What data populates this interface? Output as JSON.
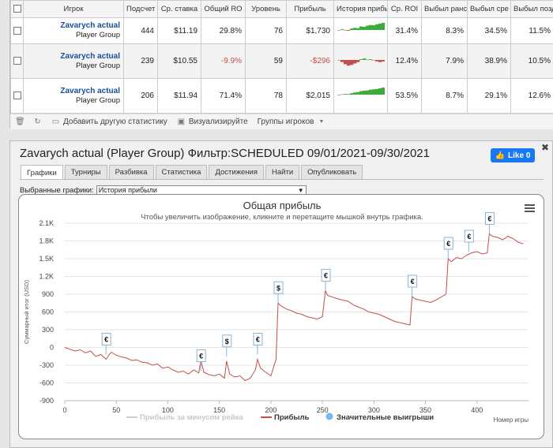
{
  "table": {
    "headers": [
      "Игрок",
      "Подсчет",
      "Ср. ставка",
      "Общий RO",
      "Уровень",
      "Прибыль",
      "История прибы",
      "Ср. ROI",
      "Выбыл ранс",
      "Выбыл сре",
      "Выбыл позд"
    ],
    "rows": [
      {
        "name": "Zavarych actual",
        "group": "Player Group",
        "count": "444",
        "avg_bet": "$11.19",
        "total_roi": "29.8%",
        "level": "76",
        "profit": "$1,730",
        "avg_roi": "31.4%",
        "early": "8.3%",
        "mid": "34.5%",
        "late": "11.5%",
        "negative": false
      },
      {
        "name": "Zavarych actual",
        "group": "Player Group",
        "count": "239",
        "avg_bet": "$10.55",
        "total_roi": "-9.9%",
        "level": "59",
        "profit": "-$296",
        "avg_roi": "12.4%",
        "early": "7.9%",
        "mid": "38.9%",
        "late": "10.5%",
        "negative": true
      },
      {
        "name": "Zavarych actual",
        "group": "Player Group",
        "count": "206",
        "avg_bet": "$11.94",
        "total_roi": "71.4%",
        "level": "78",
        "profit": "$2,015",
        "avg_roi": "53.5%",
        "early": "8.7%",
        "mid": "29.1%",
        "late": "12.6%",
        "negative": false
      }
    ]
  },
  "toolbar": {
    "add_stat": "Добавить другую статистику",
    "visualize": "Визуализируйте",
    "groups": "Группы игроков"
  },
  "panel": {
    "title": "Zavarych actual (Player Group) Фильтр:SCHEDULED 09/01/2021-09/30/2021",
    "like_label": "Like 0",
    "tabs": [
      "Графики",
      "Турниры",
      "Разбивка",
      "Статистика",
      "Достижения",
      "Найти",
      "Опубликовать"
    ],
    "select_label": "Выбранные графики:",
    "select_value": "История прибыли"
  },
  "chart_data": {
    "type": "line",
    "title": "Общая прибыль",
    "subtitle": "Чтобы увеличить изображение, кликните и перетащите мышкой внутрь графика.",
    "ylabel": "Суммарный итог (USD)",
    "xlabel": "Номер игры",
    "ylim": [
      -900,
      2100
    ],
    "xlim": [
      0,
      450
    ],
    "yticks": [
      "2.1K",
      "1.8K",
      "1.5K",
      "1.2K",
      "900",
      "600",
      "300",
      "0",
      "-300",
      "-600",
      "-900"
    ],
    "xticks": [
      "0",
      "50",
      "100",
      "150",
      "200",
      "250",
      "300",
      "350",
      "400"
    ],
    "legend": [
      "Прибыль за минусом рейка",
      "Прибыль",
      "Значительные выигрыши"
    ],
    "legend_position": "bottom",
    "line_color": "#c0504d",
    "series": [
      {
        "name": "Прибыль",
        "x": [
          0,
          5,
          10,
          15,
          20,
          25,
          30,
          35,
          40,
          45,
          50,
          55,
          60,
          65,
          70,
          75,
          80,
          85,
          90,
          95,
          100,
          105,
          110,
          115,
          120,
          125,
          130,
          132,
          135,
          140,
          145,
          150,
          155,
          157,
          160,
          165,
          170,
          175,
          180,
          185,
          187,
          190,
          195,
          200,
          205,
          207,
          210,
          215,
          220,
          225,
          230,
          235,
          240,
          245,
          250,
          253,
          255,
          260,
          265,
          270,
          275,
          280,
          285,
          290,
          295,
          300,
          305,
          310,
          315,
          320,
          325,
          330,
          335,
          337,
          340,
          345,
          350,
          355,
          360,
          365,
          370,
          372,
          375,
          380,
          385,
          390,
          395,
          400,
          405,
          410,
          412,
          415,
          420,
          425,
          430,
          435,
          440,
          445
        ],
        "y": [
          0,
          -30,
          -60,
          -40,
          -90,
          -60,
          -150,
          -120,
          -200,
          -80,
          -130,
          -160,
          -180,
          -220,
          -210,
          -250,
          -260,
          -300,
          -280,
          -350,
          -330,
          -380,
          -420,
          -400,
          -450,
          -380,
          -430,
          -220,
          -420,
          -460,
          -480,
          -450,
          -520,
          -230,
          -450,
          -500,
          -480,
          -560,
          -520,
          -380,
          -200,
          -350,
          -420,
          -480,
          -200,
          750,
          700,
          650,
          620,
          580,
          560,
          520,
          500,
          480,
          520,
          960,
          880,
          850,
          820,
          800,
          780,
          720,
          680,
          650,
          600,
          580,
          560,
          520,
          480,
          440,
          420,
          400,
          380,
          860,
          820,
          800,
          780,
          760,
          800,
          850,
          900,
          1500,
          1450,
          1520,
          1500,
          1560,
          1600,
          1620,
          1580,
          1600,
          1920,
          1880,
          1860,
          1820,
          1880,
          1840,
          1780,
          1750
        ]
      }
    ],
    "big_wins": [
      {
        "x": 40,
        "y": -120,
        "symbol": "€"
      },
      {
        "x": 132,
        "y": -400,
        "symbol": "€"
      },
      {
        "x": 157,
        "y": -150,
        "symbol": "$"
      },
      {
        "x": 187,
        "y": -120,
        "symbol": "€"
      },
      {
        "x": 207,
        "y": 750,
        "symbol": "$"
      },
      {
        "x": 253,
        "y": 960,
        "symbol": "€"
      },
      {
        "x": 337,
        "y": 860,
        "symbol": "€"
      },
      {
        "x": 372,
        "y": 1500,
        "symbol": "€"
      },
      {
        "x": 392,
        "y": 1620,
        "symbol": "€"
      },
      {
        "x": 412,
        "y": 1920,
        "symbol": "€"
      }
    ]
  },
  "sparklines": [
    [
      0,
      0.1,
      -0.05,
      -0.1,
      0.2,
      0.3,
      0.25,
      0.5,
      0.45,
      0.6,
      0.7,
      0.65,
      0.8,
      0.9,
      1.0
    ],
    [
      0,
      -0.3,
      -0.6,
      -0.8,
      -0.7,
      -0.5,
      -0.3,
      0.1,
      0.2,
      0.05,
      0.1,
      -0.05,
      -0.2,
      -0.3,
      -0.2
    ],
    [
      0,
      0.05,
      0.1,
      0.08,
      0.2,
      0.3,
      0.35,
      0.5,
      0.55,
      0.6,
      0.7,
      0.75,
      0.8,
      0.9,
      1.0
    ]
  ]
}
